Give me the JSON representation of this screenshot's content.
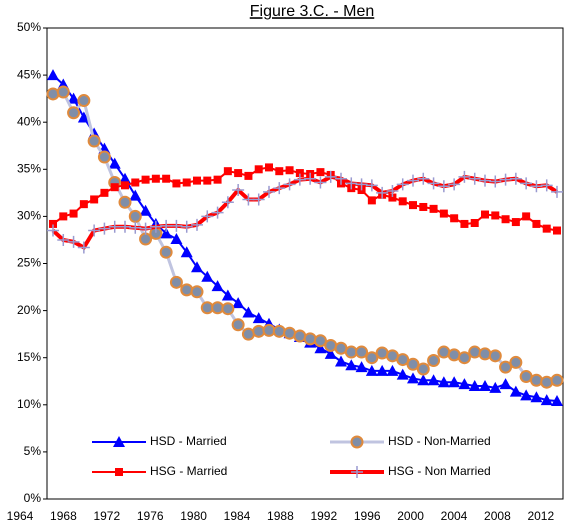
{
  "chart_data": {
    "type": "line",
    "title": "Figure 3.C. - Men",
    "categories": [
      1964,
      null,
      null,
      null,
      1968,
      null,
      null,
      null,
      1972,
      null,
      null,
      null,
      1976,
      null,
      null,
      null,
      1980,
      null,
      null,
      null,
      1984,
      null,
      null,
      null,
      1988,
      null,
      null,
      null,
      1992,
      null,
      null,
      null,
      1996,
      null,
      null,
      null,
      2000,
      null,
      null,
      null,
      2004,
      null,
      null,
      null,
      2008,
      null,
      null,
      null,
      2012,
      null
    ],
    "ylim": [
      0,
      50
    ],
    "yticks": [
      {
        "value": 0,
        "label": "0%"
      },
      {
        "value": 5,
        "label": "5%"
      },
      {
        "value": 10,
        "label": "10%"
      },
      {
        "value": 15,
        "label": "15%"
      },
      {
        "value": 20,
        "label": "20%"
      },
      {
        "value": 25,
        "label": "25%"
      },
      {
        "value": 30,
        "label": "30%"
      },
      {
        "value": 35,
        "label": "35%"
      },
      {
        "value": 40,
        "label": "40%"
      },
      {
        "value": 45,
        "label": "45%"
      },
      {
        "value": 50,
        "label": "50%"
      }
    ],
    "grid": false,
    "legend": "bottom",
    "series": [
      {
        "name": "HSD - Married",
        "color": "#0000ff",
        "marker": "triangle",
        "marker_color": "#0000ff",
        "line_width": 2,
        "values": [
          45,
          44,
          42.5,
          40.5,
          38.8,
          37.2,
          35.6,
          34,
          32.2,
          30.6,
          29.2,
          28.2,
          27.6,
          26.2,
          24.6,
          23.6,
          22.6,
          21.6,
          20.8,
          19.8,
          19.2,
          18.6,
          18,
          17.6,
          17.2,
          16.6,
          16,
          15.4,
          14.6,
          14.2,
          14,
          13.6,
          13.6,
          13.6,
          13.2,
          12.8,
          12.6,
          12.6,
          12.4,
          12.4,
          12.2,
          12,
          12,
          11.8,
          12.2,
          11.4,
          11,
          10.8,
          10.5,
          10.4
        ]
      },
      {
        "name": "HSD - Non-Married",
        "color": "#c0c4e0",
        "marker": "circle",
        "marker_color": "#7f8ea8",
        "marker_edge": "#e08a3c",
        "line_width": 3,
        "values": [
          43,
          43.2,
          41,
          42.3,
          38,
          36.3,
          33.6,
          31.5,
          30,
          27.6,
          28.2,
          26.2,
          23,
          22.2,
          22,
          20.3,
          20.3,
          20.2,
          18.5,
          17.5,
          17.8,
          17.9,
          17.8,
          17.6,
          17.3,
          17,
          16.8,
          16.3,
          16,
          15.6,
          15.6,
          15,
          15.5,
          15.2,
          14.8,
          14.3,
          13.8,
          14.7,
          15.6,
          15.3,
          15,
          15.6,
          15.4,
          15.2,
          14,
          14.5,
          13,
          12.6,
          12.4,
          12.6
        ]
      },
      {
        "name": "HSG - Married",
        "color": "#ff0000",
        "marker": "square",
        "marker_color": "#ff0000",
        "line_width": 2,
        "values": [
          29.2,
          30,
          30.3,
          31.3,
          31.8,
          32.5,
          33.1,
          33.3,
          33.6,
          33.9,
          34,
          34,
          33.5,
          33.6,
          33.8,
          33.8,
          33.9,
          34.8,
          34.6,
          34.3,
          35,
          35.2,
          34.8,
          34.9,
          34.6,
          34.5,
          34.7,
          34.4,
          33.5,
          33,
          32.8,
          31.7,
          32.3,
          32,
          31.6,
          31.2,
          31,
          30.8,
          30.3,
          29.8,
          29.2,
          29.3,
          30.2,
          30.1,
          29.7,
          29.4,
          30,
          29.2,
          28.7,
          28.5
        ]
      },
      {
        "name": "HSG - Non Married",
        "color": "#ff0000",
        "marker": "plus",
        "marker_color": "#9a9ad0",
        "line_width": 4,
        "values": [
          28.5,
          27.5,
          27.3,
          26.7,
          28.5,
          28.7,
          28.9,
          28.9,
          28.8,
          28.7,
          28.9,
          29,
          29,
          28.9,
          29.1,
          30,
          30.4,
          31.5,
          32.8,
          31.8,
          31.8,
          32.6,
          33,
          33.4,
          33.9,
          34,
          33.6,
          34.2,
          34,
          33.5,
          33.4,
          33.3,
          32.5,
          32.7,
          33.4,
          33.8,
          34,
          33.5,
          33.2,
          33.4,
          34.2,
          34,
          33.8,
          33.7,
          33.9,
          34,
          33.5,
          33.2,
          33.3,
          32.6
        ]
      }
    ]
  }
}
